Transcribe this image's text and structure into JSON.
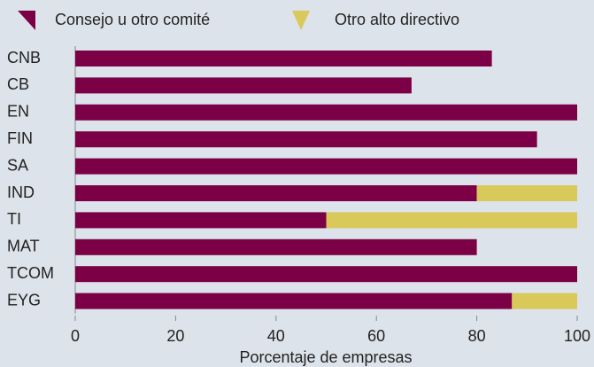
{
  "chart_data": {
    "type": "stacked-barh",
    "categories": [
      "CNB",
      "CB",
      "EN",
      "FIN",
      "SA",
      "IND",
      "TI",
      "MAT",
      "TCOM",
      "EYG"
    ],
    "series": [
      {
        "name": "Consejo u otro comité",
        "color": "#7b0046",
        "values": [
          83,
          67,
          100,
          92,
          100,
          80,
          50,
          80,
          100,
          87
        ]
      },
      {
        "name": "Otro alto directivo",
        "color": "#d9c85a",
        "values": [
          0,
          0,
          0,
          0,
          0,
          20,
          50,
          0,
          0,
          13
        ]
      }
    ],
    "xlim": [
      0,
      100
    ],
    "xticks": [
      0,
      20,
      40,
      60,
      80,
      100
    ],
    "xlabel": "Porcentaje de empresas"
  }
}
